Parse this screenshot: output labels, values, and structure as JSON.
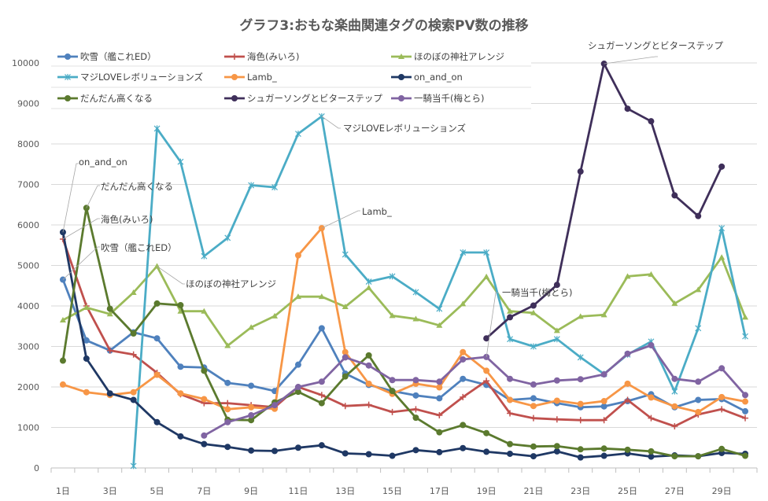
{
  "chart_data": {
    "type": "line",
    "title": "グラフ3:おもな楽曲関連タグの検索PV数の推移",
    "xlabel": "",
    "ylabel": "",
    "ylim": [
      0,
      10000
    ],
    "yticks": [
      0,
      1000,
      2000,
      3000,
      4000,
      5000,
      6000,
      7000,
      8000,
      9000,
      10000
    ],
    "grid": true,
    "legend_position": "top-left",
    "x": [
      "1日",
      "2日",
      "3日",
      "4日",
      "5日",
      "6日",
      "7日",
      "8日",
      "9日",
      "10日",
      "11日",
      "12日",
      "13日",
      "14日",
      "15日",
      "16日",
      "17日",
      "18日",
      "19日",
      "20日",
      "21日",
      "22日",
      "23日",
      "24日",
      "25日",
      "26日",
      "27日",
      "28日",
      "29日",
      "30日"
    ],
    "xtick_labels": [
      "1日",
      "3日",
      "5日",
      "7日",
      "9日",
      "11日",
      "13日",
      "15日",
      "17日",
      "19日",
      "21日",
      "23日",
      "25日",
      "27日",
      "29日"
    ],
    "series": [
      {
        "name": "吹雪（艦これED）",
        "color": "#4f81bd",
        "marker": "circle",
        "values": [
          4650,
          3150,
          2900,
          3350,
          3200,
          2500,
          2480,
          2100,
          2030,
          1900,
          2550,
          3450,
          2330,
          2050,
          1900,
          1790,
          1720,
          2200,
          2050,
          1680,
          1720,
          1600,
          1500,
          1520,
          1650,
          1820,
          1500,
          1680,
          1700,
          1400
        ]
      },
      {
        "name": "海色(みいろ)",
        "color": "#c0504d",
        "marker": "plus",
        "values": [
          5650,
          4000,
          2900,
          2800,
          2350,
          1820,
          1600,
          1600,
          1550,
          1500,
          2000,
          1800,
          1530,
          1560,
          1380,
          1450,
          1300,
          1750,
          2150,
          1350,
          1230,
          1200,
          1180,
          1180,
          1680,
          1230,
          1030,
          1320,
          1450,
          1230
        ]
      },
      {
        "name": "ほのぼの神社アレンジ",
        "color": "#9bbb59",
        "marker": "triangle",
        "values": [
          3650,
          3960,
          3800,
          4330,
          4980,
          3870,
          3870,
          3020,
          3470,
          3750,
          4230,
          4230,
          3980,
          4450,
          3760,
          3680,
          3520,
          4050,
          4720,
          3870,
          3830,
          3390,
          3740,
          3780,
          4730,
          4780,
          4060,
          4400,
          5200,
          3720
        ]
      },
      {
        "name": "マジLOVEレボリューションズ",
        "color": "#4bacc6",
        "marker": "star",
        "values": [
          null,
          null,
          null,
          50,
          8380,
          7560,
          5230,
          5680,
          6980,
          6930,
          8250,
          8680,
          5270,
          4600,
          4730,
          4340,
          3930,
          5320,
          5320,
          3180,
          3000,
          3180,
          2730,
          2320,
          2800,
          3120,
          1890,
          3450,
          5920,
          3250
        ]
      },
      {
        "name": "Lamb_",
        "color": "#f79646",
        "marker": "circle",
        "values": [
          2060,
          1870,
          1800,
          1870,
          2300,
          1840,
          1700,
          1450,
          1500,
          1460,
          5250,
          5920,
          2860,
          2080,
          1830,
          2080,
          1990,
          2860,
          2400,
          1680,
          1530,
          1660,
          1580,
          1650,
          2080,
          1740,
          1520,
          1380,
          1750,
          1640
        ]
      },
      {
        "name": "on_and_on",
        "color": "#1f3864",
        "marker": "circle",
        "values": [
          5820,
          2700,
          1840,
          1680,
          1130,
          780,
          590,
          520,
          430,
          420,
          500,
          560,
          360,
          340,
          300,
          440,
          390,
          490,
          400,
          350,
          290,
          410,
          260,
          300,
          360,
          280,
          310,
          290,
          370,
          350
        ]
      },
      {
        "name": "だんだん高くなる",
        "color": "#5b7a2e",
        "marker": "circle",
        "values": [
          2650,
          6420,
          3930,
          3320,
          4060,
          4020,
          2400,
          1190,
          1180,
          1620,
          1880,
          1600,
          2260,
          2780,
          1900,
          1240,
          880,
          1060,
          860,
          590,
          530,
          540,
          460,
          480,
          450,
          410,
          290,
          290,
          470,
          300
        ]
      },
      {
        "name": "シュガーソングとビターステップ",
        "color": "#3f2f5a",
        "marker": "circle",
        "values": [
          null,
          null,
          null,
          null,
          null,
          null,
          null,
          null,
          null,
          null,
          null,
          null,
          null,
          null,
          null,
          null,
          null,
          null,
          3200,
          3720,
          4010,
          4520,
          7320,
          9980,
          8870,
          8560,
          6730,
          6220,
          7440,
          null
        ]
      },
      {
        "name": "一騎当千(梅とら)",
        "color": "#8064a2",
        "marker": "circle",
        "values": [
          null,
          null,
          null,
          null,
          null,
          null,
          800,
          1130,
          1300,
          1550,
          2000,
          2130,
          2730,
          2530,
          2170,
          2170,
          2130,
          2680,
          2740,
          2200,
          2060,
          2160,
          2190,
          2310,
          2820,
          3030,
          2200,
          2130,
          2460,
          1800
        ]
      }
    ],
    "annotations": [
      {
        "text": "on_and_on",
        "series": "on_and_on",
        "day": "1日"
      },
      {
        "text": "だんだん高くなる",
        "series": "だんだん高くなる",
        "day": "2日"
      },
      {
        "text": "海色(みいろ)",
        "series": "海色(みいろ)",
        "day": "1日"
      },
      {
        "text": "吹雪（艦これED）",
        "series": "吹雪（艦これED）",
        "day": "1日"
      },
      {
        "text": "ほのぼの神社アレンジ",
        "series": "ほのぼの神社アレンジ",
        "day": "5日"
      },
      {
        "text": "マジLOVEレボリューションズ",
        "series": "マジLOVEレボリューションズ",
        "day": "12日"
      },
      {
        "text": "Lamb_",
        "series": "Lamb_",
        "day": "12日"
      },
      {
        "text": "一騎当千(梅とら)",
        "series": "一騎当千(梅とら)",
        "day": "19日"
      },
      {
        "text": "シュガーソングとビターステップ",
        "series": "シュガーソングとビターステップ",
        "day": "24日"
      }
    ]
  }
}
